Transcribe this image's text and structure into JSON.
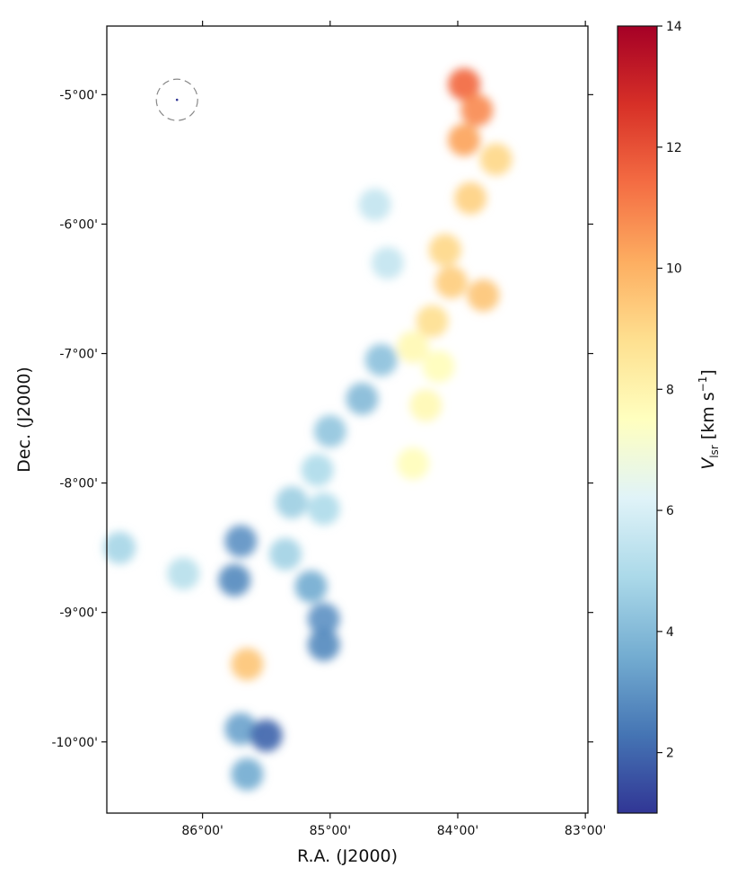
{
  "chart_data": {
    "type": "heatmap",
    "xlabel": "R.A. (J2000)",
    "ylabel": "Dec. (J2000)",
    "x_unit": "deg",
    "y_unit": "deg",
    "xlim": [
      86.75,
      82.98
    ],
    "ylim": [
      -10.55,
      -4.47
    ],
    "x_ticks": [
      {
        "value": 86.0,
        "label": "86°00'"
      },
      {
        "value": 85.0,
        "label": "85°00'"
      },
      {
        "value": 84.0,
        "label": "84°00'"
      },
      {
        "value": 83.0,
        "label": "83°00'"
      }
    ],
    "y_ticks": [
      {
        "value": -5.0,
        "label": "-5°00'"
      },
      {
        "value": -6.0,
        "label": "-6°00'"
      },
      {
        "value": -7.0,
        "label": "-7°00'"
      },
      {
        "value": -8.0,
        "label": "-8°00'"
      },
      {
        "value": -9.0,
        "label": "-9°00'"
      },
      {
        "value": -10.0,
        "label": "-10°00'"
      }
    ],
    "colorbar": {
      "label": "V_lsr [km s^-1]",
      "label_main": "V",
      "label_sub": "lsr",
      "label_unit_pre": " [km s",
      "label_unit_sup": "−1",
      "label_unit_post": "]",
      "range": [
        1,
        14
      ],
      "ticks": [
        2,
        4,
        6,
        8,
        10,
        12,
        14
      ],
      "tick_labels": [
        "2",
        "4",
        "6",
        "8",
        "10",
        "12",
        "14"
      ],
      "colormap": "RdYlBu_r",
      "stops": [
        "#313695",
        "#4575b4",
        "#74add1",
        "#abd9e9",
        "#e0f3f8",
        "#ffffbf",
        "#fee090",
        "#fdae61",
        "#f46d43",
        "#d73027",
        "#a50026"
      ]
    },
    "beam": {
      "ra": 86.2,
      "dec": -5.04
    },
    "clumps": [
      {
        "ra": 83.95,
        "dec": -4.92,
        "v": 11.5
      },
      {
        "ra": 83.85,
        "dec": -5.12,
        "v": 10.8
      },
      {
        "ra": 83.95,
        "dec": -5.35,
        "v": 10.3
      },
      {
        "ra": 83.7,
        "dec": -5.5,
        "v": 9.0
      },
      {
        "ra": 83.9,
        "dec": -5.8,
        "v": 9.2
      },
      {
        "ra": 84.1,
        "dec": -6.2,
        "v": 9.0
      },
      {
        "ra": 84.05,
        "dec": -6.45,
        "v": 9.3
      },
      {
        "ra": 83.8,
        "dec": -6.55,
        "v": 9.5
      },
      {
        "ra": 84.2,
        "dec": -6.75,
        "v": 8.8
      },
      {
        "ra": 84.35,
        "dec": -6.95,
        "v": 7.8
      },
      {
        "ra": 84.15,
        "dec": -7.1,
        "v": 7.6
      },
      {
        "ra": 84.25,
        "dec": -7.4,
        "v": 7.8
      },
      {
        "ra": 84.35,
        "dec": -7.85,
        "v": 7.6
      },
      {
        "ra": 84.65,
        "dec": -5.85,
        "v": 5.5
      },
      {
        "ra": 84.55,
        "dec": -6.3,
        "v": 5.5
      },
      {
        "ra": 84.6,
        "dec": -7.05,
        "v": 4.2
      },
      {
        "ra": 84.75,
        "dec": -7.35,
        "v": 4.0
      },
      {
        "ra": 85.0,
        "dec": -7.6,
        "v": 4.3
      },
      {
        "ra": 85.1,
        "dec": -7.9,
        "v": 5.0
      },
      {
        "ra": 85.05,
        "dec": -8.2,
        "v": 5.0
      },
      {
        "ra": 85.3,
        "dec": -8.15,
        "v": 4.6
      },
      {
        "ra": 85.35,
        "dec": -8.55,
        "v": 4.7
      },
      {
        "ra": 85.7,
        "dec": -8.45,
        "v": 3.0
      },
      {
        "ra": 85.75,
        "dec": -8.75,
        "v": 2.8
      },
      {
        "ra": 85.15,
        "dec": -8.8,
        "v": 3.6
      },
      {
        "ra": 85.05,
        "dec": -9.05,
        "v": 3.0
      },
      {
        "ra": 85.05,
        "dec": -9.25,
        "v": 2.8
      },
      {
        "ra": 86.15,
        "dec": -8.7,
        "v": 5.2
      },
      {
        "ra": 86.65,
        "dec": -8.5,
        "v": 4.8
      },
      {
        "ra": 85.7,
        "dec": -9.9,
        "v": 3.4
      },
      {
        "ra": 85.65,
        "dec": -10.25,
        "v": 3.6
      },
      {
        "ra": 85.5,
        "dec": -9.95,
        "v": 2.0
      },
      {
        "ra": 85.65,
        "dec": -9.4,
        "v": 9.5
      }
    ]
  }
}
